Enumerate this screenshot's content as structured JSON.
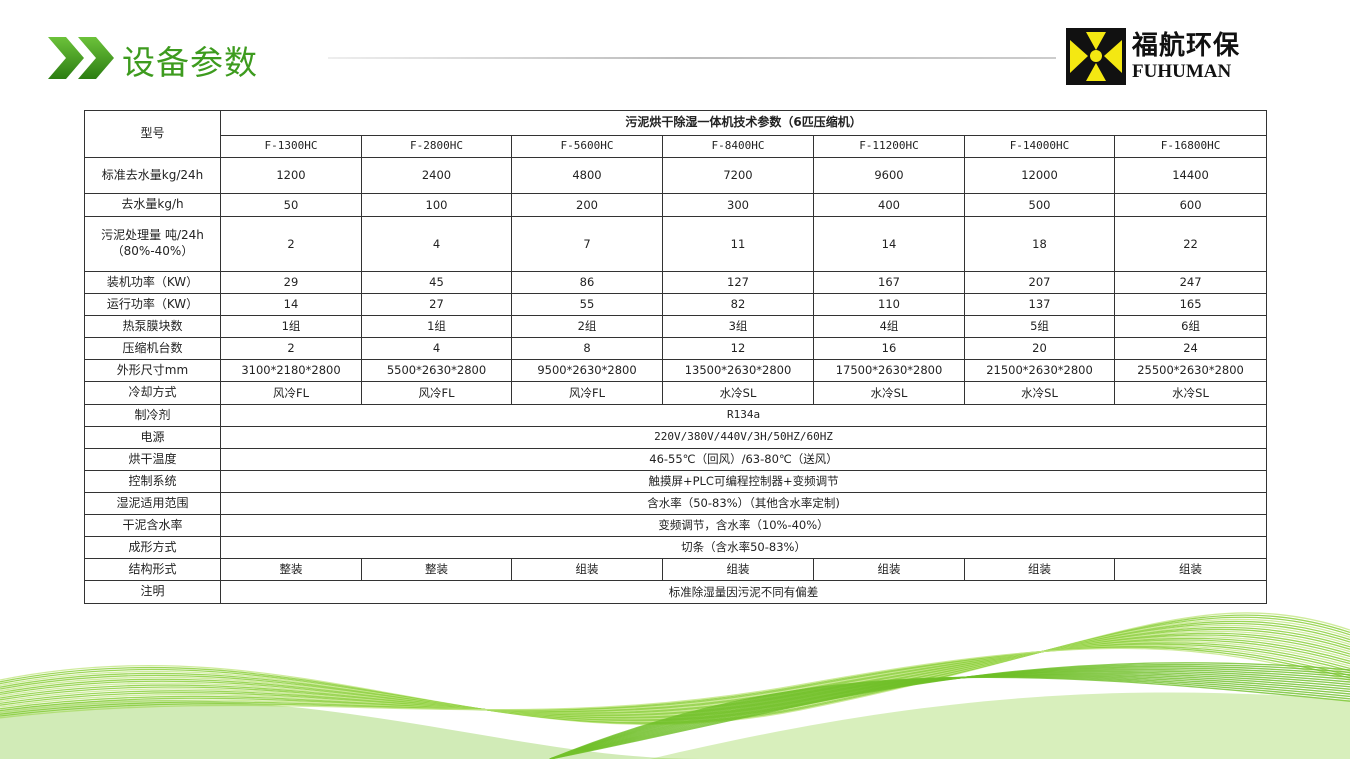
{
  "header": {
    "title": "设备参数",
    "logo_cn": "福航环保",
    "logo_en": "FUHUMAN",
    "accent": "#3d9b1e"
  },
  "table": {
    "corner": "型号",
    "caption": "污泥烘干除湿一体机技术参数（6匹压缩机）",
    "models": [
      "F-1300HC",
      "F-2800HC",
      "F-5600HC",
      "F-8400HC",
      "F-11200HC",
      "F-14000HC",
      "F-16800HC"
    ],
    "rows": [
      {
        "label": "标准去水量kg/24h",
        "values": [
          "1200",
          "2400",
          "4800",
          "7200",
          "9600",
          "12000",
          "14400"
        ]
      },
      {
        "label": "去水量kg/h",
        "values": [
          "50",
          "100",
          "200",
          "300",
          "400",
          "500",
          "600"
        ]
      },
      {
        "label": "污泥处理量 吨/24h （80%-40%）",
        "values": [
          "2",
          "4",
          "7",
          "11",
          "14",
          "18",
          "22"
        ]
      },
      {
        "label": "装机功率（KW）",
        "values": [
          "29",
          "45",
          "86",
          "127",
          "167",
          "207",
          "247"
        ]
      },
      {
        "label": "运行功率（KW）",
        "values": [
          "14",
          "27",
          "55",
          "82",
          "110",
          "137",
          "165"
        ]
      },
      {
        "label": "热泵膜块数",
        "values": [
          "1组",
          "1组",
          "2组",
          "3组",
          "4组",
          "5组",
          "6组"
        ]
      },
      {
        "label": "压缩机台数",
        "values": [
          "2",
          "4",
          "8",
          "12",
          "16",
          "20",
          "24"
        ]
      },
      {
        "label": "外形尺寸mm",
        "values": [
          "3100*2180*2800",
          "5500*2630*2800",
          "9500*2630*2800",
          "13500*2630*2800",
          "17500*2630*2800",
          "21500*2630*2800",
          "25500*2630*2800"
        ]
      },
      {
        "label": "冷却方式",
        "values": [
          "风冷FL",
          "风冷FL",
          "风冷FL",
          "水冷SL",
          "水冷SL",
          "水冷SL",
          "水冷SL"
        ]
      }
    ],
    "merged_rows": [
      {
        "label": "制冷剂",
        "value": "R134a"
      },
      {
        "label": "电源",
        "value": "220V/380V/440V/3H/50HZ/60HZ"
      },
      {
        "label": "烘干温度",
        "value": "46-55℃（回风）/63-80℃（送风）"
      },
      {
        "label": "控制系统",
        "value": "触摸屏+PLC可编程控制器+变频调节"
      },
      {
        "label": "湿泥适用范围",
        "value": "含水率（50-83%）（其他含水率定制)"
      },
      {
        "label": "干泥含水率",
        "value": "变频调节，含水率（10%-40%）"
      },
      {
        "label": "成形方式",
        "value": "切条（含水率50-83%）"
      }
    ],
    "structure": {
      "label": "结构形式",
      "values": [
        "整装",
        "整装",
        "组装",
        "组装",
        "组装",
        "组装",
        "组装"
      ]
    },
    "note": {
      "label": "注明",
      "value": "标准除湿量因污泥不同有偏差"
    }
  }
}
